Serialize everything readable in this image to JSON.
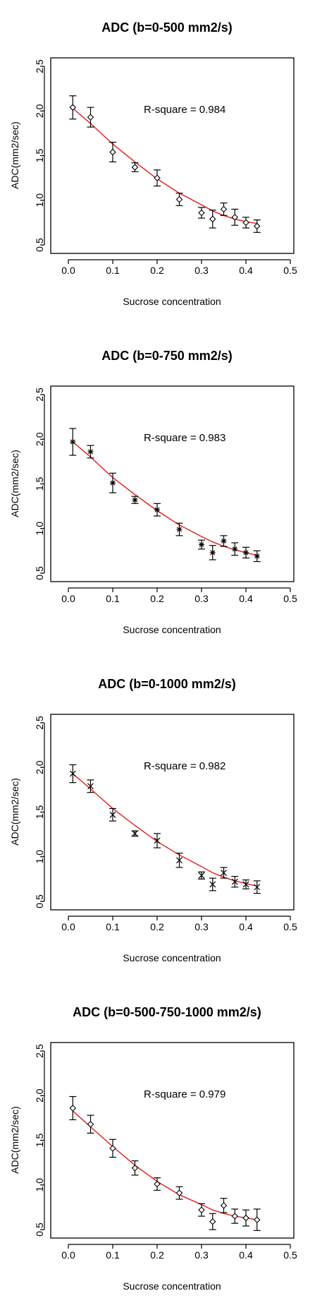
{
  "chart_data": [
    {
      "type": "scatter",
      "title": "ADC (b=0-500 mm2/s)",
      "xlabel": "Sucrose concentration",
      "ylabel": "ADC(mm2/sec)",
      "annotation": "R-square = 0.984",
      "marker": "diamond",
      "xlim": [
        0,
        0.5
      ],
      "ylim": [
        0.5,
        2.5
      ],
      "xticks": [
        "0.0",
        "0.1",
        "0.2",
        "0.3",
        "0.4",
        "0.5"
      ],
      "yticks": [
        "0.5",
        "1.0",
        "1.5",
        "2.0",
        "2.5"
      ],
      "x": [
        0.01,
        0.05,
        0.1,
        0.15,
        0.2,
        0.25,
        0.3,
        0.325,
        0.35,
        0.375,
        0.4,
        0.425
      ],
      "y": [
        2.04,
        1.93,
        1.54,
        1.37,
        1.25,
        1.01,
        0.86,
        0.79,
        0.9,
        0.81,
        0.75,
        0.71
      ],
      "err": [
        0.13,
        0.11,
        0.11,
        0.05,
        0.09,
        0.07,
        0.06,
        0.1,
        0.07,
        0.09,
        0.06,
        0.07
      ],
      "fit": [
        2.03,
        1.86,
        1.63,
        1.43,
        1.24,
        1.08,
        0.95,
        0.88,
        0.83,
        0.79,
        0.76,
        0.74
      ]
    },
    {
      "type": "scatter",
      "title": "ADC (b=0-750 mm2/s)",
      "xlabel": "Sucrose concentration",
      "ylabel": "ADC(mm2/sec)",
      "annotation": "R-square = 0.983",
      "marker": "star",
      "xlim": [
        0,
        0.5
      ],
      "ylim": [
        0.5,
        2.5
      ],
      "xticks": [
        "0.0",
        "0.1",
        "0.2",
        "0.3",
        "0.4",
        "0.5"
      ],
      "yticks": [
        "0.5",
        "1.0",
        "1.5",
        "2.0",
        "2.5"
      ],
      "x": [
        0.01,
        0.05,
        0.1,
        0.15,
        0.2,
        0.25,
        0.3,
        0.325,
        0.35,
        0.375,
        0.4,
        0.425
      ],
      "y": [
        1.97,
        1.86,
        1.51,
        1.32,
        1.21,
        0.99,
        0.82,
        0.73,
        0.86,
        0.77,
        0.73,
        0.69
      ],
      "err": [
        0.15,
        0.07,
        0.11,
        0.04,
        0.07,
        0.07,
        0.05,
        0.08,
        0.06,
        0.07,
        0.06,
        0.06
      ],
      "fit": [
        1.97,
        1.8,
        1.57,
        1.38,
        1.2,
        1.04,
        0.91,
        0.85,
        0.8,
        0.76,
        0.73,
        0.7
      ]
    },
    {
      "type": "scatter",
      "title": "ADC (b=0-1000 mm2/s)",
      "xlabel": "Sucrose concentration",
      "ylabel": "ADC(mm2/sec)",
      "annotation": "R-square = 0.982",
      "marker": "cross",
      "xlim": [
        0,
        0.5
      ],
      "ylim": [
        0.5,
        2.5
      ],
      "xticks": [
        "0.0",
        "0.1",
        "0.2",
        "0.3",
        "0.4",
        "0.5"
      ],
      "yticks": [
        "0.5",
        "1.0",
        "1.5",
        "2.0",
        "2.5"
      ],
      "x": [
        0.01,
        0.05,
        0.1,
        0.15,
        0.2,
        0.25,
        0.3,
        0.325,
        0.35,
        0.375,
        0.4,
        0.425
      ],
      "y": [
        1.93,
        1.79,
        1.47,
        1.26,
        1.18,
        0.96,
        0.79,
        0.69,
        0.82,
        0.72,
        0.69,
        0.66
      ],
      "err": [
        0.1,
        0.07,
        0.07,
        0.03,
        0.08,
        0.08,
        0.04,
        0.07,
        0.06,
        0.06,
        0.05,
        0.07
      ],
      "fit": [
        1.93,
        1.76,
        1.54,
        1.35,
        1.17,
        1.02,
        0.89,
        0.82,
        0.77,
        0.73,
        0.7,
        0.67
      ]
    },
    {
      "type": "scatter",
      "title": "ADC (b=0-500-750-1000 mm2/s)",
      "xlabel": "Sucrose concentration",
      "ylabel": "ADC(mm2/sec)",
      "annotation": "R-square = 0.979",
      "marker": "diamond",
      "xlim": [
        0,
        0.5
      ],
      "ylim": [
        0.5,
        2.5
      ],
      "xticks": [
        "0.0",
        "0.1",
        "0.2",
        "0.3",
        "0.4",
        "0.5"
      ],
      "yticks": [
        "0.5",
        "1.0",
        "1.5",
        "2.0",
        "2.5"
      ],
      "x": [
        0.01,
        0.05,
        0.1,
        0.15,
        0.2,
        0.25,
        0.3,
        0.325,
        0.35,
        0.375,
        0.4,
        0.425
      ],
      "y": [
        1.86,
        1.68,
        1.41,
        1.19,
        1.01,
        0.91,
        0.72,
        0.59,
        0.77,
        0.65,
        0.63,
        0.61
      ],
      "err": [
        0.13,
        0.1,
        0.1,
        0.08,
        0.07,
        0.07,
        0.07,
        0.09,
        0.08,
        0.08,
        0.09,
        0.12
      ],
      "fit": [
        1.83,
        1.65,
        1.43,
        1.22,
        1.04,
        0.89,
        0.78,
        0.72,
        0.68,
        0.65,
        0.63,
        0.61
      ]
    }
  ],
  "colors": {
    "fit_line": "#e31a1c",
    "axes": "#000000",
    "points": "#000000"
  }
}
